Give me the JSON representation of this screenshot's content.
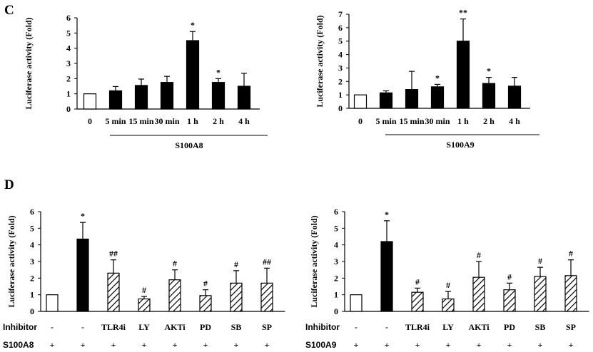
{
  "panels": {
    "c": "C",
    "d": "D"
  },
  "colors": {
    "white": "#ffffff",
    "black": "#000000"
  },
  "chart_data": [
    {
      "type": "bar",
      "title": "",
      "ylabel": "Luciferase activity (Fold)",
      "ylim": [
        0,
        6
      ],
      "yticks": [
        "0",
        "1",
        "2",
        "3",
        "4",
        "5",
        "6"
      ],
      "categories": [
        "0",
        "5 min",
        "15 min",
        "30 min",
        "1 h",
        "2 h",
        "4 h"
      ],
      "values": [
        1.0,
        1.2,
        1.55,
        1.75,
        4.5,
        1.75,
        1.5
      ],
      "errors": [
        0.0,
        0.28,
        0.42,
        0.4,
        0.6,
        0.25,
        0.85
      ],
      "fills": [
        "white",
        "black",
        "black",
        "black",
        "black",
        "black",
        "black"
      ],
      "significance": [
        "",
        "",
        "",
        "",
        "*",
        "*",
        ""
      ],
      "group_label": "S100A8"
    },
    {
      "type": "bar",
      "title": "",
      "ylabel": "Luciferase activity (Fold)",
      "ylim": [
        0,
        7
      ],
      "yticks": [
        "0",
        "1",
        "2",
        "3",
        "4",
        "5",
        "6",
        "7"
      ],
      "categories": [
        "0",
        "5 min",
        "15 min",
        "30 min",
        "1 h",
        "2 h",
        "4 h"
      ],
      "values": [
        1.0,
        1.15,
        1.4,
        1.6,
        5.0,
        1.85,
        1.65
      ],
      "errors": [
        0.0,
        0.15,
        1.35,
        0.18,
        1.65,
        0.45,
        0.65
      ],
      "fills": [
        "white",
        "black",
        "black",
        "black",
        "black",
        "black",
        "black"
      ],
      "significance": [
        "",
        "",
        "",
        "*",
        "**",
        "*",
        ""
      ],
      "group_label": "S100A9"
    },
    {
      "type": "bar",
      "title": "",
      "ylabel": "Luciferase activity (Fold)",
      "ylim": [
        0,
        6
      ],
      "yticks": [
        "0",
        "1",
        "2",
        "3",
        "4",
        "5",
        "6"
      ],
      "values": [
        1.0,
        4.35,
        2.3,
        0.75,
        1.9,
        0.95,
        1.7,
        1.7
      ],
      "errors": [
        0.0,
        1.0,
        0.8,
        0.15,
        0.6,
        0.35,
        0.75,
        0.9
      ],
      "fills": [
        "white",
        "black",
        "hatch",
        "hatch",
        "hatch",
        "hatch",
        "hatch",
        "hatch"
      ],
      "significance": [
        "",
        "*",
        "##",
        "#",
        "#",
        "#",
        "#",
        "##"
      ],
      "row_labels": [
        "Inhibitor",
        "S100A8"
      ],
      "inhibitor_row": [
        "-",
        "-",
        "TLR4i",
        "LY",
        "AKTi",
        "PD",
        "SB",
        "SP"
      ],
      "stimulus_row": [
        "+",
        "+",
        "+",
        "+",
        "+",
        "+",
        "+",
        "+"
      ]
    },
    {
      "type": "bar",
      "title": "",
      "ylabel": "Luciferase activity (Fold)",
      "ylim": [
        0,
        6
      ],
      "yticks": [
        "0",
        "1",
        "2",
        "3",
        "4",
        "5",
        "6"
      ],
      "values": [
        1.0,
        4.2,
        1.15,
        0.75,
        2.05,
        1.3,
        2.1,
        2.15
      ],
      "errors": [
        0.0,
        1.25,
        0.25,
        0.45,
        0.95,
        0.4,
        0.55,
        0.95
      ],
      "fills": [
        "white",
        "black",
        "hatch",
        "hatch",
        "hatch",
        "hatch",
        "hatch",
        "hatch"
      ],
      "significance": [
        "",
        "*",
        "#",
        "#",
        "#",
        "#",
        "#",
        "#"
      ],
      "row_labels": [
        "Inhibitor",
        "S100A9"
      ],
      "inhibitor_row": [
        "-",
        "-",
        "TLR4i",
        "LY",
        "AKTi",
        "PD",
        "SB",
        "SP"
      ],
      "stimulus_row": [
        "+",
        "+",
        "+",
        "+",
        "+",
        "+",
        "+",
        "+"
      ]
    }
  ]
}
